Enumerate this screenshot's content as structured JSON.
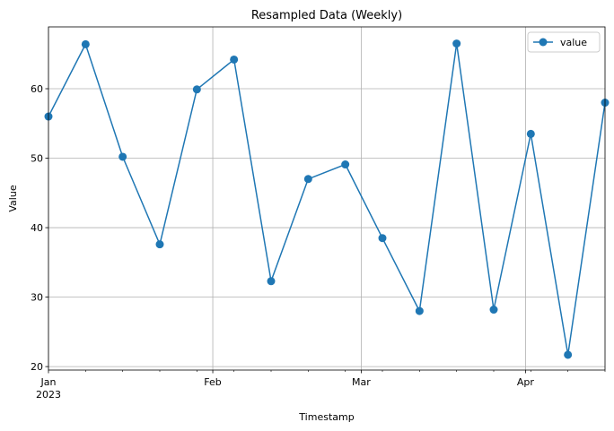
{
  "chart_data": {
    "type": "line",
    "title": "Resampled Data (Weekly)",
    "xlabel": "Timestamp",
    "ylabel": "Value",
    "x": [
      "2023-01-01",
      "2023-01-08",
      "2023-01-15",
      "2023-01-22",
      "2023-01-29",
      "2023-02-05",
      "2023-02-12",
      "2023-02-19",
      "2023-02-26",
      "2023-03-05",
      "2023-03-12",
      "2023-03-19",
      "2023-03-26",
      "2023-04-02",
      "2023-04-09",
      "2023-04-16"
    ],
    "series": [
      {
        "name": "value",
        "color": "#1f77b4",
        "values": [
          56.0,
          66.4,
          50.2,
          37.6,
          59.9,
          64.2,
          32.3,
          47.0,
          49.1,
          38.5,
          28.0,
          66.5,
          28.2,
          53.5,
          21.7,
          58.0
        ]
      }
    ],
    "xlim": [
      "2023-01-01",
      "2023-04-16"
    ],
    "ylim": [
      19.5,
      68.9
    ],
    "y_ticks": [
      20,
      30,
      40,
      50,
      60
    ],
    "x_major_ticks": [
      {
        "date": "2023-01-01",
        "label": "Jan",
        "sublabel": "2023"
      },
      {
        "date": "2023-02-01",
        "label": "Feb",
        "sublabel": ""
      },
      {
        "date": "2023-03-01",
        "label": "Mar",
        "sublabel": ""
      },
      {
        "date": "2023-04-01",
        "label": "Apr",
        "sublabel": ""
      }
    ],
    "x_minor_ticks": [
      "2023-01-08",
      "2023-01-15",
      "2023-01-22",
      "2023-01-29",
      "2023-02-05",
      "2023-02-12",
      "2023-02-19",
      "2023-02-26",
      "2023-03-05",
      "2023-03-12",
      "2023-03-19",
      "2023-03-26",
      "2023-04-02",
      "2023-04-09",
      "2023-04-16"
    ],
    "grid": true,
    "legend": "top-right"
  }
}
